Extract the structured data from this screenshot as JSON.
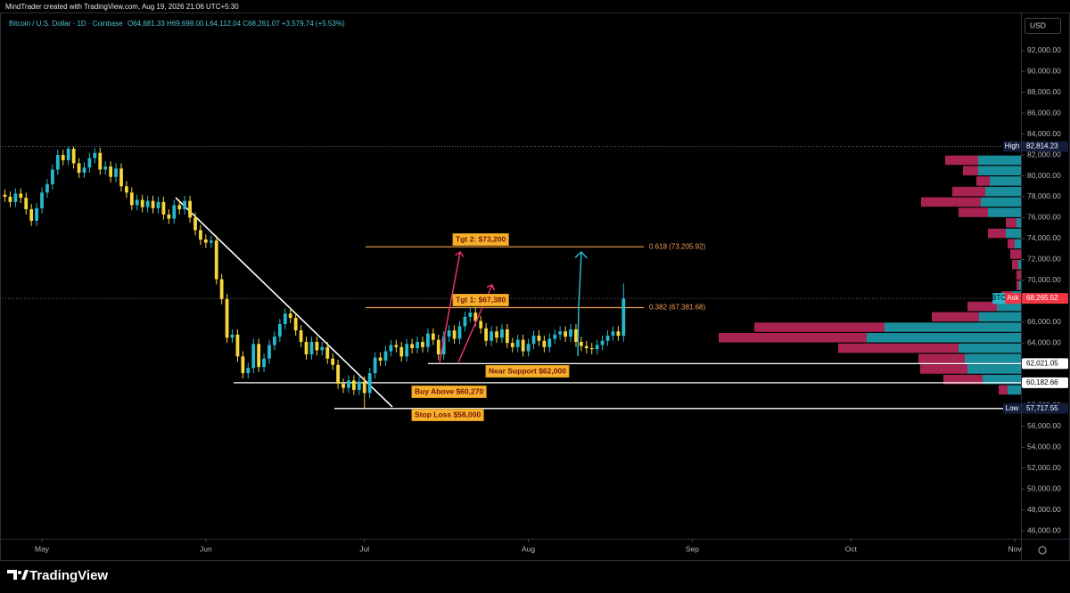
{
  "header": {
    "credit": "MindTrader created with TradingView.com, Aug 19, 2026 21:06 UTC+5:30",
    "symbol": "Bitcoin / U.S. Dollar · 1D · Coinbase",
    "ohlc": "O64,681.33 H69,698.00 L64,112.04 C68,261.07 +3,579.74 (+5.53%)",
    "currency": "USD"
  },
  "chart_data": {
    "type": "candlestick",
    "up_color": "#26b8cc",
    "down_color": "#f5d63d",
    "open": [
      78200,
      78000,
      77500,
      78300,
      77900,
      76800,
      75700,
      76900,
      78400,
      79200,
      80600,
      82000,
      81500,
      82600,
      81200,
      80300,
      80800,
      81700,
      82200,
      80600,
      80900,
      79900,
      80700,
      79000,
      78400,
      77200,
      77700,
      77000,
      77600,
      76900,
      77500,
      76300,
      75900,
      77200,
      76800,
      77600,
      76000,
      74800,
      73900,
      73600,
      73800,
      70100,
      68200,
      64500,
      64800,
      62700,
      61100,
      61600,
      63900,
      61700,
      62500,
      63800,
      64600,
      65800,
      66800,
      66400,
      65200,
      64100,
      62900,
      64100,
      63300,
      63600,
      62500,
      61900,
      60100,
      59700,
      60400,
      59500,
      60300,
      59200,
      61100,
      62600,
      62300,
      63200,
      63800,
      63600,
      62700,
      63900,
      63500,
      64100,
      63600,
      64900,
      64300,
      62900,
      64600,
      65200,
      64400,
      65600,
      66500,
      66900,
      66100,
      65400,
      64200,
      65100,
      64500,
      65300,
      64000,
      63600,
      64300,
      63200,
      63900,
      64700,
      64200,
      63600,
      64400,
      64800,
      65100,
      64600,
      65300,
      64100,
      63700,
      63500,
      63400,
      63800,
      64200,
      64700,
      65100,
      64681.33
    ],
    "high": [
      78700,
      78500,
      78800,
      78800,
      78400,
      77300,
      77400,
      78900,
      79700,
      81100,
      82500,
      82500,
      82814.23,
      82800,
      81700,
      81300,
      82200,
      82700,
      82700,
      81400,
      81400,
      81200,
      81200,
      79500,
      78900,
      78200,
      78200,
      78100,
      78100,
      78000,
      78000,
      76800,
      77700,
      77700,
      78100,
      78100,
      76500,
      75300,
      74400,
      74300,
      74300,
      70600,
      68700,
      65300,
      65300,
      63200,
      62100,
      64400,
      64400,
      63000,
      64300,
      65100,
      66300,
      67300,
      67300,
      66900,
      65700,
      64600,
      64600,
      64600,
      64100,
      64100,
      63000,
      62400,
      60600,
      60900,
      60900,
      60800,
      60800,
      61600,
      63100,
      63100,
      63700,
      64300,
      64300,
      64100,
      64400,
      64400,
      64600,
      64600,
      65400,
      65400,
      64800,
      65100,
      65700,
      65700,
      66100,
      67000,
      67400,
      67400,
      66600,
      65900,
      65600,
      65600,
      65800,
      65800,
      64500,
      64800,
      64800,
      64400,
      65200,
      65200,
      64700,
      64900,
      65300,
      65600,
      65600,
      65800,
      65800,
      64600,
      64200,
      64000,
      64300,
      64700,
      65200,
      65600,
      65600,
      69698
    ],
    "low": [
      77500,
      77000,
      77000,
      77400,
      76300,
      75200,
      75200,
      76400,
      77900,
      78700,
      80100,
      81000,
      81000,
      80700,
      79800,
      79800,
      80300,
      81200,
      80100,
      80100,
      79400,
      79400,
      78500,
      77900,
      76700,
      76700,
      76500,
      76500,
      76400,
      76400,
      75800,
      75400,
      75400,
      76300,
      76300,
      75500,
      74300,
      73400,
      73100,
      73100,
      69600,
      67700,
      64000,
      64000,
      62200,
      60600,
      60600,
      61100,
      61200,
      61200,
      62000,
      63300,
      64100,
      65300,
      65900,
      64700,
      63600,
      62400,
      62400,
      62800,
      62800,
      62000,
      61400,
      59600,
      59200,
      59200,
      59000,
      59000,
      57717.55,
      58700,
      60600,
      61800,
      61800,
      62700,
      63100,
      62200,
      62200,
      63000,
      63000,
      63100,
      63100,
      63800,
      62400,
      62400,
      64100,
      63900,
      63900,
      65100,
      66000,
      65600,
      64900,
      63700,
      63700,
      64000,
      64000,
      63500,
      63100,
      63100,
      62700,
      62700,
      63400,
      63700,
      63100,
      63100,
      63900,
      64300,
      64100,
      64100,
      63600,
      63200,
      63000,
      62900,
      62900,
      63300,
      63700,
      64200,
      64200,
      64112.04
    ],
    "close": [
      78000,
      77500,
      78300,
      77900,
      76800,
      75700,
      76900,
      78400,
      79200,
      80600,
      82000,
      81500,
      82600,
      81200,
      80300,
      80800,
      81700,
      82200,
      80600,
      80900,
      79900,
      80700,
      79000,
      78400,
      77200,
      77700,
      77000,
      77600,
      76900,
      77500,
      76300,
      75900,
      77200,
      76800,
      77600,
      76000,
      74800,
      73900,
      73600,
      73800,
      70100,
      68200,
      64500,
      64800,
      62700,
      61100,
      61600,
      63900,
      61700,
      62500,
      63800,
      64600,
      65800,
      66800,
      66400,
      65200,
      64100,
      62900,
      64100,
      63300,
      63600,
      62500,
      61900,
      60100,
      59700,
      60400,
      59500,
      60300,
      59200,
      61100,
      62600,
      62300,
      63200,
      63800,
      63600,
      62700,
      63900,
      63500,
      64100,
      63600,
      64900,
      64300,
      62900,
      64600,
      65200,
      64400,
      65600,
      66500,
      66900,
      66100,
      65400,
      64200,
      65100,
      64500,
      65300,
      64000,
      63600,
      64300,
      63200,
      63900,
      64700,
      64200,
      63600,
      64400,
      64800,
      65100,
      64600,
      65300,
      64100,
      63700,
      63500,
      63400,
      63800,
      64200,
      64700,
      65100,
      64681.33,
      68261.07
    ],
    "xlim": [
      -0.93,
      192.16
    ],
    "xticks": [
      {
        "value": 7,
        "label": "May"
      },
      {
        "value": 38,
        "label": "Jun"
      },
      {
        "value": 68,
        "label": "Jul"
      },
      {
        "value": 99,
        "label": "Aug"
      },
      {
        "value": 130,
        "label": "Sep"
      },
      {
        "value": 160,
        "label": "Oct"
      },
      {
        "value": 191,
        "label": "Nov"
      }
    ],
    "ylim": [
      45250,
      95650
    ],
    "yticks": [
      {
        "value": 92000,
        "label": "92,000.00"
      },
      {
        "value": 90000,
        "label": "90,000.00"
      },
      {
        "value": 88000,
        "label": "88,000.00"
      },
      {
        "value": 86000,
        "label": "86,000.00"
      },
      {
        "value": 84000,
        "label": "84,000.00"
      },
      {
        "value": 82000,
        "label": "82,000.00"
      },
      {
        "value": 80000,
        "label": "80,000.00"
      },
      {
        "value": 78000,
        "label": "78,000.00"
      },
      {
        "value": 76000,
        "label": "76,000.00"
      },
      {
        "value": 74000,
        "label": "74,000.00"
      },
      {
        "value": 72000,
        "label": "72,000.00"
      },
      {
        "value": 70000,
        "label": "70,000.00"
      },
      {
        "value": 68000,
        "label": "68,000.00"
      },
      {
        "value": 66000,
        "label": "66,000.00"
      },
      {
        "value": 64000,
        "label": "64,000.00"
      },
      {
        "value": 62000,
        "label": "62,000.00"
      },
      {
        "value": 60000,
        "label": "60,000.00"
      },
      {
        "value": 58000,
        "label": "58,000.00"
      },
      {
        "value": 56000,
        "label": "56,000.00"
      },
      {
        "value": 54000,
        "label": "54,000.00"
      },
      {
        "value": 52000,
        "label": "52,000.00"
      },
      {
        "value": 50000,
        "label": "50,000.00"
      },
      {
        "value": 48000,
        "label": "48,000.00"
      },
      {
        "value": 46000,
        "label": "46,000.00"
      }
    ],
    "grid": false,
    "high_mark": {
      "value": 82814.23,
      "label": "82,814.23",
      "tag": "High"
    },
    "last_price": {
      "value": 68265.52,
      "label": "68,265.52",
      "tag": "Ask",
      "badge": "BTC"
    },
    "levels": [
      {
        "value": 62021.05,
        "label": "62,021.05"
      },
      {
        "value": 60182.66,
        "label": "60,182.66"
      },
      {
        "value": 57717.55,
        "label": "57,717.55",
        "tag": "Low"
      }
    ],
    "fib_levels": [
      {
        "value": 73205.92,
        "label": "0.618 (73,205.92)"
      },
      {
        "value": 67381.68,
        "label": "0.382 (67,381.68)"
      }
    ],
    "annotations": [
      "Tgt 2: $73,200",
      "Tgt 1: $67,380",
      "Near Support $62,000",
      "Buy Above $60,270",
      "Stop Loss $58,000"
    ],
    "volume_profile": {
      "up_color": "#1a8d9c",
      "down_color": "#a82352",
      "price": [
        81500,
        80500,
        79500,
        78500,
        77500,
        76500,
        75500,
        74500,
        73500,
        72500,
        71500,
        70500,
        69500,
        68500,
        67500,
        66500,
        65500,
        64500,
        63500,
        62500,
        61500,
        60500,
        59500
      ],
      "up": [
        48,
        48,
        35,
        40,
        45,
        37,
        5,
        17,
        7,
        0,
        3,
        0,
        2,
        10,
        27,
        47,
        153,
        173,
        70,
        63,
        60,
        43,
        15
      ],
      "down": [
        37,
        17,
        15,
        37,
        67,
        33,
        12,
        20,
        8,
        12,
        7,
        5,
        3,
        12,
        33,
        53,
        146,
        166,
        135,
        52,
        53,
        44,
        10
      ]
    }
  },
  "footer": {
    "brand": "TradingView"
  }
}
